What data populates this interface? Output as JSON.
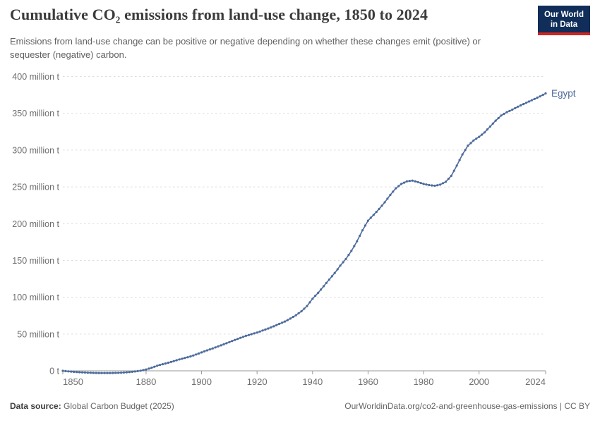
{
  "header": {
    "title": "Cumulative CO₂ emissions from land-use change, 1850 to 2024",
    "subtitle": "Emissions from land-use change can be positive or negative depending on whether these changes emit (positive) or sequester (negative) carbon.",
    "logo": {
      "line1": "Our World",
      "line2": "in Data",
      "bg_color": "#102E59",
      "stripe_color": "#CE2620"
    }
  },
  "footer": {
    "source_label": "Data source:",
    "source_value": " Global Carbon Budget (2025)",
    "attribution": "OurWorldinData.org/co2-and-greenhouse-gas-emissions | CC BY"
  },
  "chart_data": {
    "type": "line",
    "title": "Cumulative CO₂ emissions from land-use change, 1850 to 2024",
    "entity": "Egypt",
    "unit": "million t",
    "xlabel": "",
    "ylabel": "",
    "xlim": [
      1850,
      2024
    ],
    "ylim": [
      0,
      400
    ],
    "grid": "horizontal-dashed",
    "legend": "end-of-line-label",
    "colors": {
      "line": "#4C6A9C",
      "grid": "#dcdcdc",
      "axis": "#999999",
      "tick_text": "#6e6e6e"
    },
    "y_axis": {
      "ticks": [
        {
          "value": 0,
          "label": "0 t"
        },
        {
          "value": 50,
          "label": "50 million t"
        },
        {
          "value": 100,
          "label": "100 million t"
        },
        {
          "value": 150,
          "label": "150 million t"
        },
        {
          "value": 200,
          "label": "200 million t"
        },
        {
          "value": 250,
          "label": "250 million t"
        },
        {
          "value": 300,
          "label": "300 million t"
        },
        {
          "value": 350,
          "label": "350 million t"
        },
        {
          "value": 400,
          "label": "400 million t"
        }
      ]
    },
    "x_axis": {
      "ticks": [
        {
          "value": 1850,
          "label": "1850"
        },
        {
          "value": 1880,
          "label": "1880"
        },
        {
          "value": 1900,
          "label": "1900"
        },
        {
          "value": 1920,
          "label": "1920"
        },
        {
          "value": 1940,
          "label": "1940"
        },
        {
          "value": 1960,
          "label": "1960"
        },
        {
          "value": 1980,
          "label": "1980"
        },
        {
          "value": 2000,
          "label": "2000"
        },
        {
          "value": 2024,
          "label": "2024"
        }
      ]
    },
    "series": [
      {
        "name": "Egypt",
        "color": "#4C6A9C",
        "points": [
          [
            1850,
            0
          ],
          [
            1852,
            -0.8
          ],
          [
            1854,
            -1.4
          ],
          [
            1856,
            -1.9
          ],
          [
            1858,
            -2.3
          ],
          [
            1860,
            -2.6
          ],
          [
            1862,
            -2.9
          ],
          [
            1864,
            -3.0
          ],
          [
            1866,
            -3.0
          ],
          [
            1868,
            -2.9
          ],
          [
            1870,
            -2.7
          ],
          [
            1872,
            -2.3
          ],
          [
            1874,
            -1.7
          ],
          [
            1876,
            -0.9
          ],
          [
            1878,
            0.2
          ],
          [
            1880,
            1.8
          ],
          [
            1882,
            4.2
          ],
          [
            1884,
            7.0
          ],
          [
            1886,
            9.0
          ],
          [
            1888,
            11.0
          ],
          [
            1890,
            13.2
          ],
          [
            1892,
            15.5
          ],
          [
            1894,
            17.5
          ],
          [
            1896,
            19.5
          ],
          [
            1898,
            22.2
          ],
          [
            1900,
            25.0
          ],
          [
            1902,
            27.8
          ],
          [
            1904,
            30.5
          ],
          [
            1906,
            33.2
          ],
          [
            1908,
            36.0
          ],
          [
            1910,
            39.0
          ],
          [
            1912,
            42.0
          ],
          [
            1914,
            44.8
          ],
          [
            1916,
            47.5
          ],
          [
            1918,
            49.8
          ],
          [
            1920,
            52.0
          ],
          [
            1922,
            54.8
          ],
          [
            1924,
            57.5
          ],
          [
            1926,
            60.5
          ],
          [
            1928,
            63.8
          ],
          [
            1930,
            67.0
          ],
          [
            1932,
            71.0
          ],
          [
            1934,
            75.5
          ],
          [
            1936,
            81.0
          ],
          [
            1938,
            88.0
          ],
          [
            1940,
            98.0
          ],
          [
            1942,
            106.0
          ],
          [
            1944,
            115.0
          ],
          [
            1946,
            124.0
          ],
          [
            1948,
            133.0
          ],
          [
            1950,
            143.0
          ],
          [
            1952,
            152.0
          ],
          [
            1954,
            163.0
          ],
          [
            1956,
            176.0
          ],
          [
            1958,
            191.0
          ],
          [
            1960,
            204.0
          ],
          [
            1962,
            212.0
          ],
          [
            1964,
            220.0
          ],
          [
            1966,
            229.0
          ],
          [
            1968,
            239.0
          ],
          [
            1970,
            248.0
          ],
          [
            1972,
            254.0
          ],
          [
            1974,
            257.5
          ],
          [
            1976,
            258.5
          ],
          [
            1978,
            256.5
          ],
          [
            1980,
            254.0
          ],
          [
            1982,
            252.5
          ],
          [
            1984,
            251.5
          ],
          [
            1986,
            253.0
          ],
          [
            1988,
            257.0
          ],
          [
            1990,
            265.0
          ],
          [
            1992,
            279.0
          ],
          [
            1994,
            294.0
          ],
          [
            1996,
            306.0
          ],
          [
            1998,
            313.0
          ],
          [
            2000,
            318.0
          ],
          [
            2002,
            324.0
          ],
          [
            2004,
            332.0
          ],
          [
            2006,
            340.0
          ],
          [
            2008,
            347.0
          ],
          [
            2010,
            351.5
          ],
          [
            2012,
            355.0
          ],
          [
            2014,
            359.0
          ],
          [
            2016,
            362.5
          ],
          [
            2018,
            366.0
          ],
          [
            2020,
            369.5
          ],
          [
            2022,
            373.0
          ],
          [
            2024,
            377.0
          ]
        ]
      }
    ]
  }
}
